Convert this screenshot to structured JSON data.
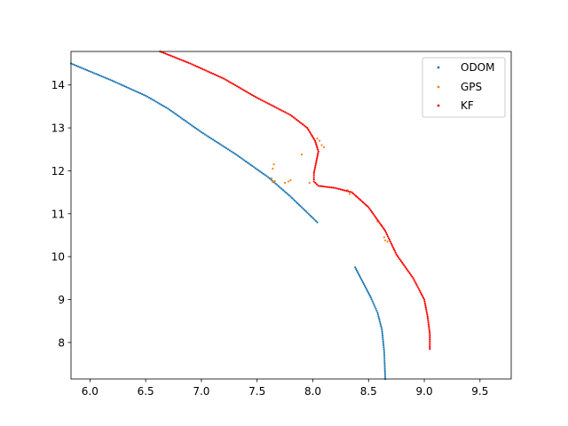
{
  "chart_data": {
    "type": "scatter",
    "title": "",
    "xlabel": "",
    "ylabel": "",
    "xlim": [
      5.83,
      9.78
    ],
    "ylim": [
      7.15,
      14.78
    ],
    "xticks": [
      6.0,
      6.5,
      7.0,
      7.5,
      8.0,
      8.5,
      9.0,
      9.5
    ],
    "xtick_labels": [
      "6.0",
      "6.5",
      "7.0",
      "7.5",
      "8.0",
      "8.5",
      "9.0",
      "9.5"
    ],
    "yticks": [
      8,
      9,
      10,
      11,
      12,
      13,
      14
    ],
    "ytick_labels": [
      "8",
      "9",
      "10",
      "11",
      "12",
      "13",
      "14"
    ],
    "grid": false,
    "legend": {
      "placement": "top-right",
      "entries": [
        "ODOM",
        "GPS",
        "KF"
      ]
    },
    "series": [
      {
        "name": "ODOM",
        "color": "#1f77b4",
        "segments": [
          [
            [
              5.83,
              14.5
            ],
            [
              6.2,
              14.1
            ],
            [
              6.5,
              13.75
            ],
            [
              6.7,
              13.45
            ],
            [
              7.0,
              12.9
            ],
            [
              7.3,
              12.4
            ],
            [
              7.6,
              11.85
            ],
            [
              7.8,
              11.4
            ],
            [
              8.04,
              10.8
            ]
          ],
          [
            [
              8.38,
              9.75
            ],
            [
              8.45,
              9.4
            ],
            [
              8.52,
              9.05
            ],
            [
              8.58,
              8.7
            ],
            [
              8.62,
              8.3
            ],
            [
              8.64,
              7.8
            ],
            [
              8.65,
              7.15
            ]
          ]
        ]
      },
      {
        "name": "GPS",
        "color": "#ff7f0e",
        "points": [
          [
            8.04,
            12.75
          ],
          [
            8.06,
            12.7
          ],
          [
            8.08,
            12.6
          ],
          [
            8.1,
            12.55
          ],
          [
            7.9,
            12.38
          ],
          [
            7.65,
            12.15
          ],
          [
            7.64,
            12.05
          ],
          [
            7.63,
            11.82
          ],
          [
            7.66,
            11.76
          ],
          [
            7.64,
            11.74
          ],
          [
            7.75,
            11.72
          ],
          [
            7.8,
            11.78
          ],
          [
            7.78,
            11.75
          ],
          [
            7.97,
            11.72
          ],
          [
            8.31,
            11.55
          ],
          [
            8.33,
            11.46
          ],
          [
            8.58,
            10.82
          ],
          [
            8.62,
            10.72
          ],
          [
            8.64,
            10.45
          ],
          [
            8.65,
            10.38
          ],
          [
            8.67,
            10.35
          ]
        ]
      },
      {
        "name": "KF",
        "color": "#ff0000",
        "segments": [
          [
            [
              6.63,
              14.78
            ],
            [
              6.9,
              14.5
            ],
            [
              7.2,
              14.15
            ],
            [
              7.5,
              13.7
            ],
            [
              7.8,
              13.3
            ],
            [
              7.95,
              13.0
            ],
            [
              8.02,
              12.7
            ],
            [
              8.05,
              12.45
            ],
            [
              8.03,
              12.2
            ],
            [
              8.01,
              11.95
            ],
            [
              8.01,
              11.75
            ],
            [
              8.05,
              11.65
            ],
            [
              8.2,
              11.6
            ],
            [
              8.35,
              11.5
            ],
            [
              8.5,
              11.15
            ],
            [
              8.65,
              10.6
            ],
            [
              8.75,
              10.05
            ],
            [
              8.9,
              9.5
            ],
            [
              9.0,
              9.0
            ],
            [
              9.03,
              8.6
            ],
            [
              9.05,
              8.2
            ],
            [
              9.05,
              7.85
            ]
          ]
        ]
      }
    ]
  }
}
